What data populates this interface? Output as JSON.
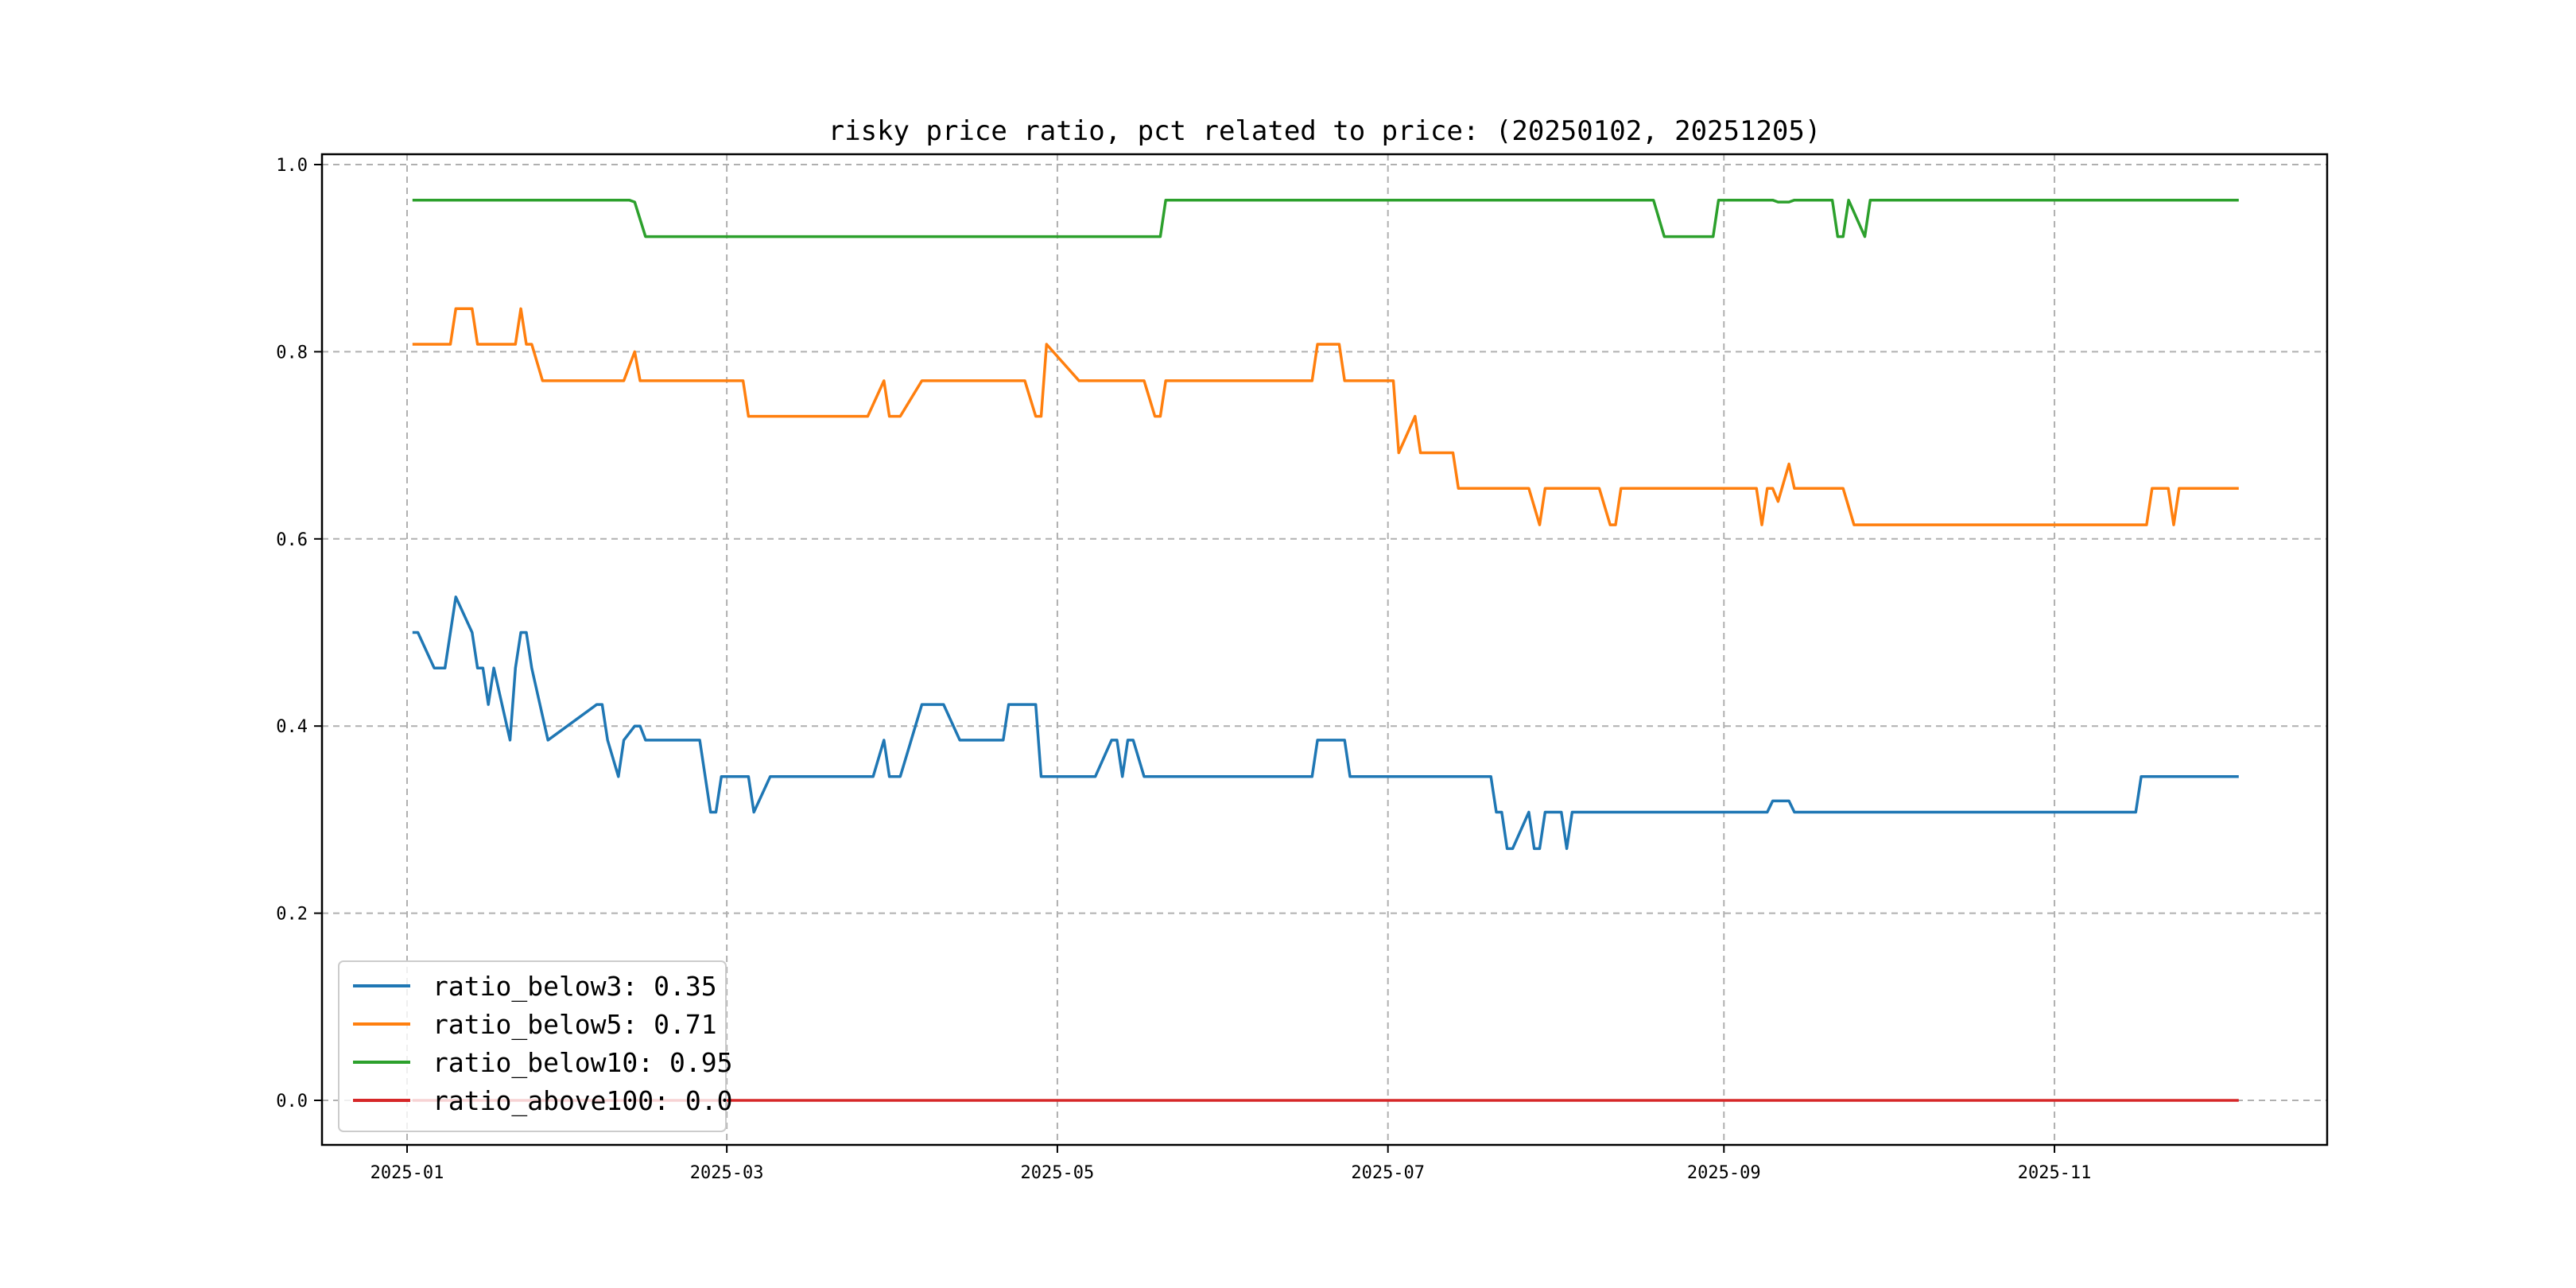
{
  "chart_data": {
    "type": "line",
    "title": "risky price ratio, pct related to price: (20250102, 20251205)",
    "xlabel": "",
    "ylabel": "",
    "x_unit": "days since 2025-01-01",
    "xlim_days": [
      -11,
      355
    ],
    "ylim": [
      -0.05,
      1.005
    ],
    "grid": true,
    "legend_position": "lower-left",
    "x_ticks": [
      {
        "day": 0,
        "label": "2025-01"
      },
      {
        "day": 59,
        "label": "2025-03"
      },
      {
        "day": 120,
        "label": "2025-05"
      },
      {
        "day": 181,
        "label": "2025-07"
      },
      {
        "day": 243,
        "label": "2025-09"
      },
      {
        "day": 304,
        "label": "2025-11"
      }
    ],
    "y_ticks": [
      {
        "value": 0.0,
        "label": "0.0"
      },
      {
        "value": 0.2,
        "label": "0.2"
      },
      {
        "value": 0.4,
        "label": "0.4"
      },
      {
        "value": 0.6,
        "label": "0.6"
      },
      {
        "value": 0.8,
        "label": "0.8"
      },
      {
        "value": 1.0,
        "label": "1.0"
      }
    ],
    "series": [
      {
        "name": "ratio_below3",
        "legend": "ratio_below3: 0.35",
        "color": "#1f77b4",
        "points": [
          [
            1,
            0.5
          ],
          [
            2,
            0.5
          ],
          [
            5,
            0.462
          ],
          [
            7,
            0.462
          ],
          [
            9,
            0.538
          ],
          [
            12,
            0.5
          ],
          [
            13,
            0.462
          ],
          [
            14,
            0.462
          ],
          [
            15,
            0.423
          ],
          [
            16,
            0.462
          ],
          [
            19,
            0.385
          ],
          [
            20,
            0.462
          ],
          [
            21,
            0.5
          ],
          [
            22,
            0.5
          ],
          [
            23,
            0.462
          ],
          [
            26,
            0.385
          ],
          [
            35,
            0.423
          ],
          [
            36,
            0.423
          ],
          [
            37,
            0.385
          ],
          [
            39,
            0.346
          ],
          [
            40,
            0.385
          ],
          [
            42,
            0.4
          ],
          [
            43,
            0.4
          ],
          [
            44,
            0.385
          ],
          [
            54,
            0.385
          ],
          [
            56,
            0.308
          ],
          [
            57,
            0.308
          ],
          [
            58,
            0.346
          ],
          [
            63,
            0.346
          ],
          [
            64,
            0.308
          ],
          [
            67,
            0.346
          ],
          [
            86,
            0.346
          ],
          [
            88,
            0.385
          ],
          [
            89,
            0.346
          ],
          [
            91,
            0.346
          ],
          [
            95,
            0.423
          ],
          [
            99,
            0.423
          ],
          [
            102,
            0.385
          ],
          [
            110,
            0.385
          ],
          [
            111,
            0.423
          ],
          [
            116,
            0.423
          ],
          [
            117,
            0.346
          ],
          [
            127,
            0.346
          ],
          [
            130,
            0.385
          ],
          [
            131,
            0.385
          ],
          [
            132,
            0.346
          ],
          [
            133,
            0.385
          ],
          [
            134,
            0.385
          ],
          [
            136,
            0.346
          ],
          [
            167,
            0.346
          ],
          [
            168,
            0.385
          ],
          [
            173,
            0.385
          ],
          [
            174,
            0.346
          ],
          [
            200,
            0.346
          ],
          [
            201,
            0.308
          ],
          [
            202,
            0.308
          ],
          [
            203,
            0.269
          ],
          [
            204,
            0.269
          ],
          [
            207,
            0.308
          ],
          [
            208,
            0.269
          ],
          [
            209,
            0.269
          ],
          [
            210,
            0.308
          ],
          [
            213,
            0.308
          ],
          [
            214,
            0.269
          ],
          [
            215,
            0.308
          ],
          [
            251,
            0.308
          ],
          [
            252,
            0.32
          ],
          [
            255,
            0.32
          ],
          [
            256,
            0.308
          ],
          [
            319,
            0.308
          ],
          [
            320,
            0.346
          ],
          [
            338,
            0.346
          ]
        ]
      },
      {
        "name": "ratio_below5",
        "legend": "ratio_below5: 0.71",
        "color": "#ff7f0e",
        "points": [
          [
            1,
            0.808
          ],
          [
            8,
            0.808
          ],
          [
            9,
            0.846
          ],
          [
            12,
            0.846
          ],
          [
            13,
            0.808
          ],
          [
            20,
            0.808
          ],
          [
            21,
            0.846
          ],
          [
            22,
            0.808
          ],
          [
            23,
            0.808
          ],
          [
            25,
            0.769
          ],
          [
            40,
            0.769
          ],
          [
            42,
            0.8
          ],
          [
            43,
            0.769
          ],
          [
            62,
            0.769
          ],
          [
            63,
            0.731
          ],
          [
            85,
            0.731
          ],
          [
            88,
            0.769
          ],
          [
            89,
            0.731
          ],
          [
            91,
            0.731
          ],
          [
            95,
            0.769
          ],
          [
            114,
            0.769
          ],
          [
            116,
            0.731
          ],
          [
            117,
            0.731
          ],
          [
            118,
            0.808
          ],
          [
            124,
            0.769
          ],
          [
            136,
            0.769
          ],
          [
            138,
            0.731
          ],
          [
            139,
            0.731
          ],
          [
            140,
            0.769
          ],
          [
            167,
            0.769
          ],
          [
            168,
            0.808
          ],
          [
            172,
            0.808
          ],
          [
            173,
            0.769
          ],
          [
            182,
            0.769
          ],
          [
            183,
            0.692
          ],
          [
            186,
            0.731
          ],
          [
            187,
            0.692
          ],
          [
            193,
            0.692
          ],
          [
            194,
            0.654
          ],
          [
            207,
            0.654
          ],
          [
            209,
            0.615
          ],
          [
            210,
            0.654
          ],
          [
            220,
            0.654
          ],
          [
            222,
            0.615
          ],
          [
            223,
            0.615
          ],
          [
            224,
            0.654
          ],
          [
            249,
            0.654
          ],
          [
            250,
            0.615
          ],
          [
            251,
            0.654
          ],
          [
            252,
            0.654
          ],
          [
            253,
            0.64
          ],
          [
            255,
            0.68
          ],
          [
            256,
            0.654
          ],
          [
            265,
            0.654
          ],
          [
            267,
            0.615
          ],
          [
            321,
            0.615
          ],
          [
            322,
            0.654
          ],
          [
            325,
            0.654
          ],
          [
            326,
            0.615
          ],
          [
            327,
            0.654
          ],
          [
            338,
            0.654
          ]
        ]
      },
      {
        "name": "ratio_below10",
        "legend": "ratio_below10: 0.95",
        "color": "#2ca02c",
        "points": [
          [
            1,
            0.962
          ],
          [
            41,
            0.962
          ],
          [
            42,
            0.96
          ],
          [
            44,
            0.923
          ],
          [
            139,
            0.923
          ],
          [
            140,
            0.962
          ],
          [
            230,
            0.962
          ],
          [
            232,
            0.923
          ],
          [
            241,
            0.923
          ],
          [
            242,
            0.962
          ],
          [
            252,
            0.962
          ],
          [
            253,
            0.96
          ],
          [
            255,
            0.96
          ],
          [
            256,
            0.962
          ],
          [
            263,
            0.962
          ],
          [
            264,
            0.923
          ],
          [
            265,
            0.923
          ],
          [
            266,
            0.962
          ],
          [
            269,
            0.923
          ],
          [
            270,
            0.962
          ],
          [
            338,
            0.962
          ]
        ]
      },
      {
        "name": "ratio_above100",
        "legend": "ratio_above100: 0.0",
        "color": "#d62728",
        "points": [
          [
            1,
            0.0
          ],
          [
            338,
            0.0
          ]
        ]
      }
    ]
  }
}
